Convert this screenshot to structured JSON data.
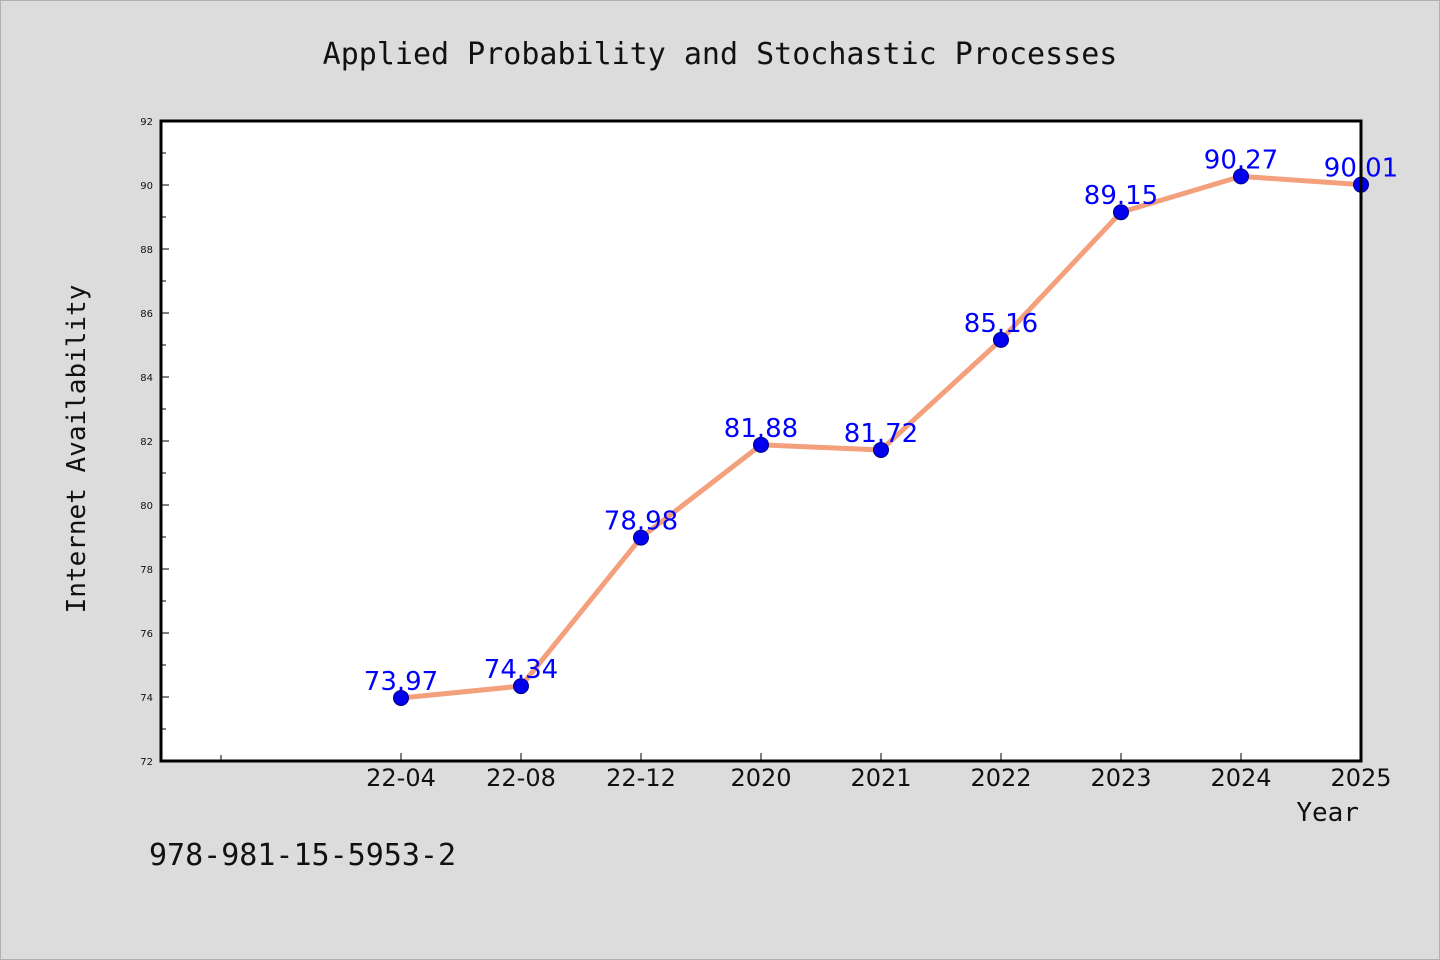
{
  "chart_data": {
    "type": "line",
    "title": "Applied Probability and Stochastic Processes",
    "xlabel": "Year",
    "ylabel": "Internet Availability",
    "categories": [
      "22-04",
      "22-08",
      "22-12",
      "2020",
      "2021",
      "2022",
      "2023",
      "2024",
      "2025"
    ],
    "series": [
      {
        "values": [
          73.97,
          74.34,
          78.98,
          81.88,
          81.72,
          85.16,
          89.15,
          90.27,
          90.01
        ],
        "labels": [
          "73.97",
          "74.34",
          "78.98",
          "81.88",
          "81.72",
          "85.16",
          "89.15",
          "90.27",
          "90.01"
        ]
      }
    ],
    "ylim": [
      72,
      92
    ],
    "yticks": [
      72,
      74,
      76,
      78,
      80,
      82,
      84,
      86,
      88,
      90,
      92
    ],
    "ytick_labels": [
      "72",
      "74",
      "76",
      "78",
      "80",
      "82",
      "84",
      "86",
      "88",
      "90",
      "92"
    ],
    "grid": false,
    "line_color": "#f4a07c",
    "marker_color": "#0000ee",
    "label_color": "#0000ff"
  },
  "footnote": "978-981-15-5953-2"
}
